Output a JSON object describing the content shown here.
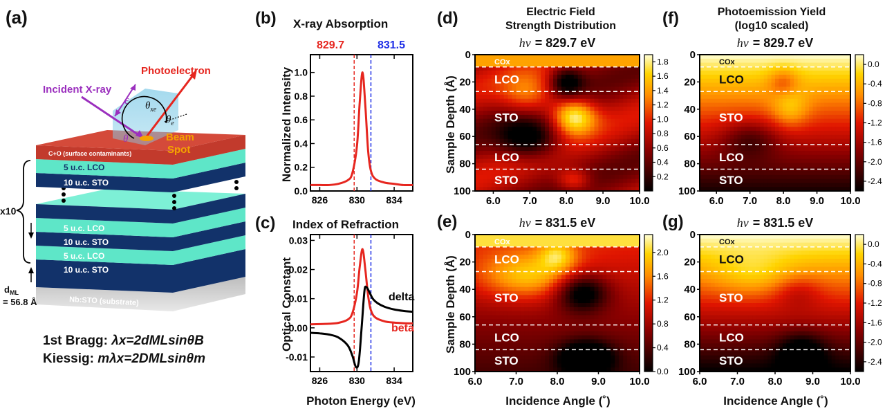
{
  "colors": {
    "red": "#e6261f",
    "blue": "#1f2fe6",
    "black": "#000000",
    "purple": "#9b2fbe",
    "orange": "#f5a300"
  },
  "panels": {
    "a": {
      "letter": "(a)",
      "photoelectron": "Photoelectron",
      "incident": "Incident X-ray",
      "eps": "ε",
      "theta_xe": "θ",
      "theta_xe_sub": "xe",
      "theta_e": "θ",
      "theta_e_sub": "e",
      "theta_x": "θ",
      "beam": "Beam",
      "spot": "Spot",
      "layers": {
        "contam": "C+O (surface contaminants)",
        "lco": "5 u.c. LCO",
        "sto": "10 u.c. STO",
        "substrate": "Nb:STO (substrate)"
      },
      "x10": "x10",
      "dml_label": "d",
      "dml_sub": "ML",
      "dml_value": "= 56.8 Å",
      "bragg_label": "1st Bragg: ",
      "bragg_eq": "λx=2dMLsinθB",
      "kiessig_label": "Kiessig: ",
      "kiessig_eq": "mλx=2DMLsinθm"
    },
    "b": {
      "letter": "(b)",
      "title": "X-ray Absorption",
      "marker1": "829.7",
      "marker2": "831.5",
      "ylabel": "Normalized Intensity"
    },
    "c": {
      "letter": "(c)",
      "title": "Index of Refraction",
      "ylabel": "Optical Constant",
      "xlabel": "Photon Energy (eV)",
      "delta": "delta",
      "beta": "beta"
    },
    "d": {
      "letter": "(d)",
      "title1": "Electric Field",
      "title2": "Strength Distribution",
      "hv": "hν",
      "energy": "= 829.7 eV"
    },
    "e": {
      "letter": "(e)",
      "hv": "hν",
      "energy": "= 831.5 eV"
    },
    "f": {
      "letter": "(f)",
      "title1": "Photoemission Yield",
      "title2": "(log10 scaled)",
      "hv": "hν",
      "energy": "= 829.7 eV"
    },
    "g": {
      "letter": "(g)",
      "hv": "hν",
      "energy": "= 831.5 eV"
    },
    "heatmap_common": {
      "ylabel": "Sample Depth (Å)",
      "xlabel": "Incidence Angle (˚)",
      "layers": [
        "COx",
        "LCO",
        "STO",
        "LCO",
        "STO"
      ]
    }
  },
  "chart_data": [
    {
      "type": "line",
      "title": "X-ray Absorption",
      "ylabel": "Normalized Intensity",
      "xlim": [
        825,
        836
      ],
      "ylim": [
        0,
        1.15
      ],
      "xticks": [
        "826",
        "830",
        "834"
      ],
      "yticks": [
        "0.0",
        "0.2",
        "0.4",
        "0.6",
        "0.8",
        "1.0"
      ],
      "vlines": [
        829.7,
        831.5
      ],
      "series": [
        {
          "x": [
            825,
            826,
            827,
            828,
            829,
            829.5,
            830,
            830.3,
            830.6,
            830.9,
            831.2,
            831.5,
            832,
            833,
            834,
            835,
            836
          ],
          "y": [
            0.05,
            0.05,
            0.05,
            0.06,
            0.09,
            0.15,
            0.38,
            0.75,
            1.0,
            0.72,
            0.34,
            0.17,
            0.1,
            0.07,
            0.06,
            0.05,
            0.05
          ]
        }
      ]
    },
    {
      "type": "line",
      "title": "Index of Refraction",
      "xlabel": "Photon Energy (eV)",
      "ylabel": "Optical Constant",
      "xlim": [
        825,
        836
      ],
      "ylim": [
        -0.015,
        0.032
      ],
      "xticks": [
        "826",
        "830",
        "834"
      ],
      "yticks": [
        "-0.01",
        "0.00",
        "0.01",
        "0.02",
        "0.03"
      ],
      "vlines": [
        829.7,
        831.5
      ],
      "series": [
        {
          "name": "beta",
          "x": [
            825,
            826,
            827,
            828,
            829,
            829.5,
            830,
            830.3,
            830.6,
            830.9,
            831.2,
            831.5,
            832,
            833,
            834,
            835,
            836
          ],
          "y": [
            0.0012,
            0.0013,
            0.0014,
            0.0017,
            0.0028,
            0.005,
            0.012,
            0.021,
            0.027,
            0.02,
            0.011,
            0.006,
            0.0035,
            0.0022,
            0.0018,
            0.0016,
            0.0015
          ]
        },
        {
          "name": "delta",
          "x": [
            825,
            826,
            827,
            828,
            829,
            829.5,
            829.9,
            830.2,
            830.5,
            830.8,
            831.0,
            831.3,
            831.7,
            832.2,
            833,
            834,
            835,
            836
          ],
          "y": [
            -0.0017,
            -0.0019,
            -0.0023,
            -0.0033,
            -0.006,
            -0.0095,
            -0.0135,
            -0.0115,
            0.0,
            0.0125,
            0.014,
            0.0125,
            0.01,
            0.0085,
            0.0072,
            0.0063,
            0.0058,
            0.0055
          ]
        }
      ]
    },
    {
      "type": "heatmap",
      "panel": "d",
      "xlabel": "Incidence Angle (˚)",
      "ylabel": "Sample Depth (Å)",
      "xlim": [
        5.5,
        10.0
      ],
      "ylim": [
        0,
        100
      ],
      "xticks": [
        "6.0",
        "7.0",
        "8.0",
        "9.0",
        "10.0"
      ],
      "yticks": [
        "0",
        "20",
        "40",
        "60",
        "80",
        "100"
      ],
      "colorbar": [
        "0.2",
        "0.4",
        "0.6",
        "0.8",
        "1.0",
        "1.2",
        "1.4",
        "1.6",
        "1.8"
      ],
      "cmin": 0.0,
      "cmax": 1.9,
      "interfaces": [
        9,
        27,
        66,
        84
      ]
    },
    {
      "type": "heatmap",
      "panel": "e",
      "xlabel": "Incidence Angle (˚)",
      "ylabel": "Sample Depth (Å)",
      "xlim": [
        6.0,
        10.0
      ],
      "ylim": [
        0,
        100
      ],
      "xticks": [
        "6.0",
        "7.0",
        "8.0",
        "9.0",
        "10.0"
      ],
      "yticks": [
        "0",
        "20",
        "40",
        "60",
        "80",
        "100"
      ],
      "colorbar": [
        "0.0",
        "0.4",
        "0.8",
        "1.2",
        "1.6",
        "2.0"
      ],
      "cmin": 0.0,
      "cmax": 2.3,
      "interfaces": [
        9,
        27,
        66,
        84
      ]
    },
    {
      "type": "heatmap",
      "panel": "f",
      "xlabel": "Incidence Angle (˚)",
      "ylabel": "Sample Depth (Å)",
      "xlim": [
        5.5,
        10.0
      ],
      "ylim": [
        0,
        100
      ],
      "xticks": [
        "6.0",
        "7.0",
        "8.0",
        "9.0",
        "10.0"
      ],
      "yticks": [
        "0",
        "20",
        "40",
        "60",
        "80",
        "100"
      ],
      "colorbar": [
        "0.0",
        "-0.4",
        "-0.8",
        "-1.2",
        "-1.6",
        "-2.0",
        "-2.4"
      ],
      "cmin": -2.6,
      "cmax": 0.2,
      "interfaces": [
        9,
        27,
        66,
        84
      ]
    },
    {
      "type": "heatmap",
      "panel": "g",
      "xlabel": "Incidence Angle (˚)",
      "ylabel": "Sample Depth (Å)",
      "xlim": [
        6.0,
        10.0
      ],
      "ylim": [
        0,
        100
      ],
      "xticks": [
        "6.0",
        "7.0",
        "8.0",
        "9.0",
        "10.0"
      ],
      "yticks": [
        "0",
        "20",
        "40",
        "60",
        "80",
        "100"
      ],
      "colorbar": [
        "0.0",
        "-0.4",
        "-0.8",
        "-1.2",
        "-1.6",
        "-2.0",
        "-2.4"
      ],
      "cmin": -2.6,
      "cmax": 0.2,
      "interfaces": [
        9,
        27,
        66,
        84
      ]
    }
  ]
}
